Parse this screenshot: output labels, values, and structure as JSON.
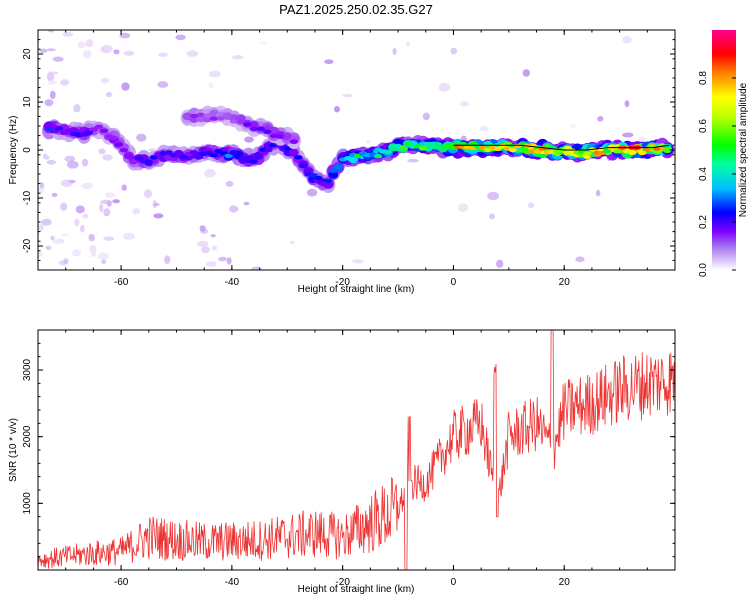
{
  "title": "PAZ1.2025.250.02.35.G27",
  "chart_data": [
    {
      "type": "heatmap",
      "xlabel": "Height of straight line (km)",
      "ylabel": "Frequency (Hz)",
      "xlim": [
        -75,
        40
      ],
      "ylim": [
        -25,
        25
      ],
      "xticks": [
        -60,
        -40,
        -20,
        0,
        20
      ],
      "yticks": [
        -20,
        -10,
        0,
        10,
        20
      ],
      "colorbar": {
        "label": "Normalized spectral amplitude",
        "range": [
          0,
          1
        ],
        "ticks": [
          "0.0",
          "0.2",
          "0.4",
          "0.6",
          "0.8"
        ],
        "colors": [
          "#ffffff",
          "#b98df0",
          "#8b00ff",
          "#0000ff",
          "#00e0ff",
          "#00ff00",
          "#ffff00",
          "#ff8000",
          "#ff0000",
          "#ff00a0"
        ]
      },
      "ridge": [
        {
          "x": -73,
          "freq": 4.5,
          "amp": 0.35
        },
        {
          "x": -70,
          "freq": 4.0,
          "amp": 0.25
        },
        {
          "x": -67,
          "freq": 3.5,
          "amp": 0.3
        },
        {
          "x": -64,
          "freq": 4.5,
          "amp": 0.2
        },
        {
          "x": -61,
          "freq": 2.5,
          "amp": 0.25
        },
        {
          "x": -58,
          "freq": -2.0,
          "amp": 0.25
        },
        {
          "x": -55,
          "freq": -2.0,
          "amp": 0.3
        },
        {
          "x": -52,
          "freq": -1.0,
          "amp": 0.3
        },
        {
          "x": -48,
          "freq": -1.0,
          "amp": 0.28
        },
        {
          "x": -44,
          "freq": -0.5,
          "amp": 0.3
        },
        {
          "x": -40,
          "freq": -1.0,
          "amp": 0.4
        },
        {
          "x": -36,
          "freq": -2.0,
          "amp": 0.3
        },
        {
          "x": -32,
          "freq": 1.5,
          "amp": 0.3
        },
        {
          "x": -29,
          "freq": -0.5,
          "amp": 0.3
        },
        {
          "x": -26,
          "freq": -5.0,
          "amp": 0.35
        },
        {
          "x": -23,
          "freq": -7.5,
          "amp": 0.3
        },
        {
          "x": -20,
          "freq": -1.5,
          "amp": 0.45
        },
        {
          "x": -17,
          "freq": -1.5,
          "amp": 0.5
        },
        {
          "x": -14,
          "freq": -1.0,
          "amp": 0.5
        },
        {
          "x": -10,
          "freq": 0.5,
          "amp": 0.55
        },
        {
          "x": -6,
          "freq": 1.0,
          "amp": 0.55
        },
        {
          "x": -3,
          "freq": 0.5,
          "amp": 0.55
        },
        {
          "x": 0,
          "freq": 0.5,
          "amp": 0.75
        },
        {
          "x": 4,
          "freq": 0.5,
          "amp": 0.7
        },
        {
          "x": 8,
          "freq": 0.5,
          "amp": 0.7
        },
        {
          "x": 12,
          "freq": 0.5,
          "amp": 0.65
        },
        {
          "x": 16,
          "freq": 0.0,
          "amp": 0.85
        },
        {
          "x": 20,
          "freq": -0.5,
          "amp": 0.7
        },
        {
          "x": 24,
          "freq": -0.5,
          "amp": 0.75
        },
        {
          "x": 28,
          "freq": 0.0,
          "amp": 0.7
        },
        {
          "x": 32,
          "freq": 0.0,
          "amp": 0.85
        },
        {
          "x": 36,
          "freq": 0.0,
          "amp": 0.8
        },
        {
          "x": 39,
          "freq": 0.5,
          "amp": 0.6
        }
      ],
      "secondary_ridge": [
        {
          "x": -48,
          "freq": 7.0,
          "amp": 0.2
        },
        {
          "x": -41,
          "freq": 7.0,
          "amp": 0.18
        },
        {
          "x": -36,
          "freq": 5.0,
          "amp": 0.25
        },
        {
          "x": -31,
          "freq": 3.0,
          "amp": 0.25
        },
        {
          "x": -28,
          "freq": 2.0,
          "amp": 0.22
        }
      ]
    },
    {
      "type": "line",
      "xlabel": "Height of straight line (km)",
      "ylabel": "SNR (10 * v/v)",
      "xlim": [
        -75,
        40
      ],
      "ylim": [
        0,
        3600
      ],
      "xticks": [
        -60,
        -40,
        -20,
        0,
        20
      ],
      "yticks": [
        1000,
        2000,
        3000
      ],
      "line_color": "#ee3333",
      "series": [
        {
          "x": [
            -75,
            -70,
            -65,
            -60,
            -55,
            -50,
            -45,
            -40,
            -35,
            -30,
            -25,
            -20,
            -15,
            -10,
            -8,
            -5,
            0,
            5,
            8,
            10,
            15,
            18,
            20,
            25,
            30,
            35,
            39
          ],
          "values": [
            150,
            200,
            250,
            280,
            500,
            450,
            420,
            430,
            450,
            500,
            550,
            500,
            700,
            900,
            1300,
            1300,
            2000,
            2200,
            1000,
            2000,
            2200,
            1800,
            2400,
            2500,
            2700,
            2800,
            2850
          ]
        }
      ]
    }
  ]
}
